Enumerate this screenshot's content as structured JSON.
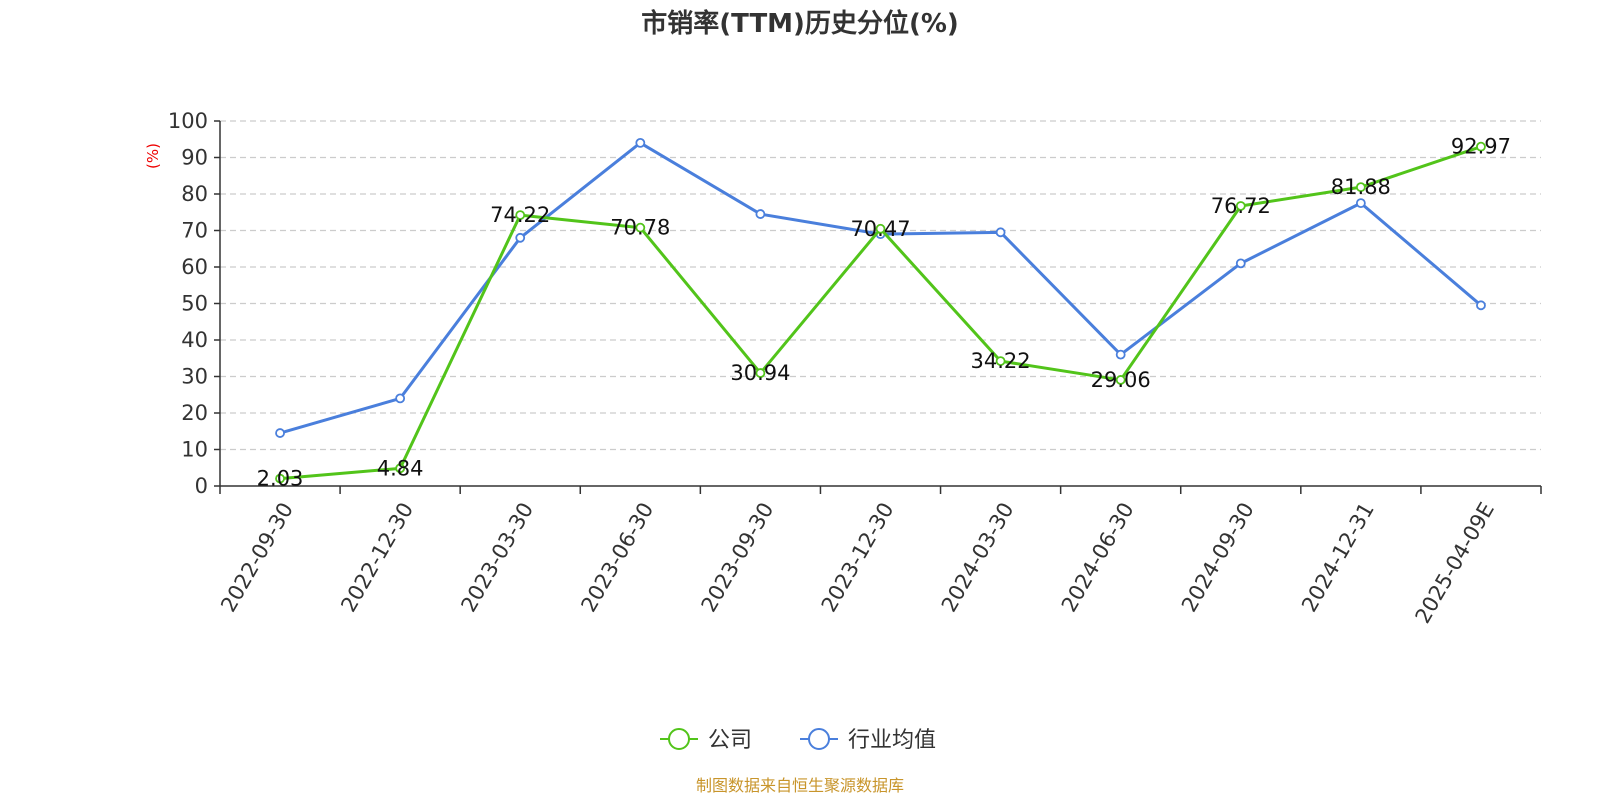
{
  "chart_data": {
    "type": "line",
    "title": "市销率(TTM)历史分位(%)",
    "ylabel": "(%)",
    "ylim": [
      0,
      100
    ],
    "yticks": [
      "0",
      "10",
      "20",
      "30",
      "40",
      "50",
      "60",
      "70",
      "80",
      "90",
      "100"
    ],
    "categories": [
      "2022-09-30",
      "2022-12-30",
      "2023-03-30",
      "2023-06-30",
      "2023-09-30",
      "2023-12-30",
      "2024-03-30",
      "2024-06-30",
      "2024-09-30",
      "2024-12-31",
      "2025-04-09E"
    ],
    "series": [
      {
        "name": "公司",
        "color": "#52c41a",
        "values": [
          2.03,
          4.84,
          74.22,
          70.78,
          30.94,
          70.47,
          34.22,
          29.06,
          76.72,
          81.88,
          92.97
        ],
        "labels": [
          "2.03",
          "4.84",
          "74.22",
          "70.78",
          "30.94",
          "70.47",
          "34.22",
          "29.06",
          "76.72",
          "81.88",
          "92.97"
        ]
      },
      {
        "name": "行业均值",
        "color": "#4a7fdc",
        "values": [
          14.5,
          24.0,
          68.0,
          94.0,
          74.5,
          69.0,
          69.5,
          36.0,
          61.0,
          77.5,
          49.5
        ]
      }
    ],
    "grid": true,
    "legend": "bottom-center",
    "source": "制图数据来自恒生聚源数据库"
  }
}
